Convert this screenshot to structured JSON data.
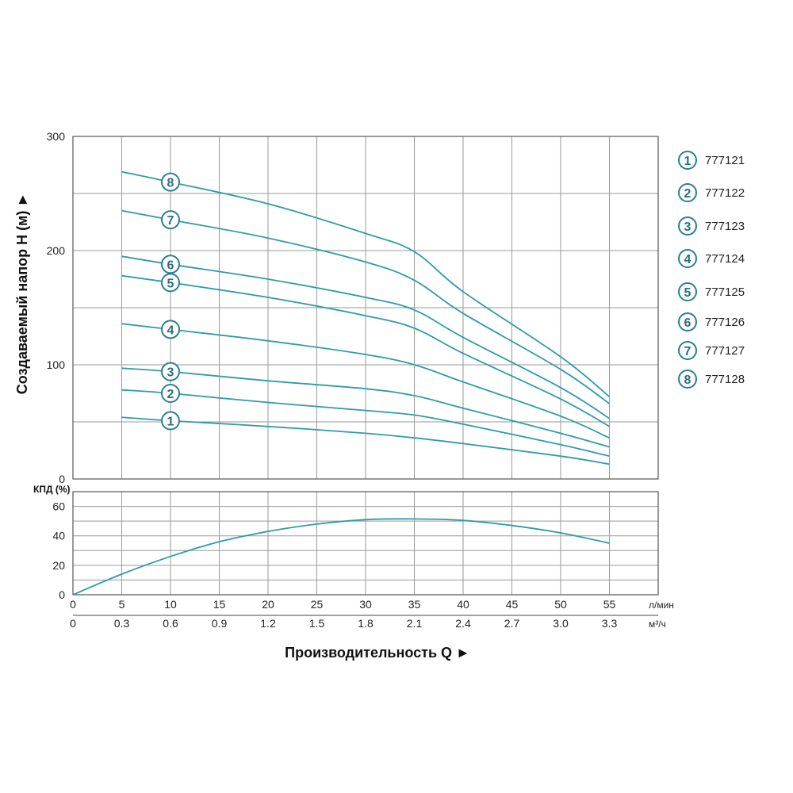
{
  "colors": {
    "curve": "#2f9bab",
    "grid": "#9a9a9a",
    "frame": "#555555",
    "marker_stroke": "#2a7f90",
    "marker_text": "#2a6f80"
  },
  "chart_data": [
    {
      "type": "line",
      "ylabel": "Создаваемый напор H (м) ►",
      "ylim": [
        0,
        300
      ],
      "yticks": [
        "300",
        "200",
        "100",
        "0"
      ],
      "x_units": "л/мин",
      "xlim": [
        0,
        60
      ],
      "series": [
        {
          "name": "777121",
          "marker": "1",
          "x": [
            5,
            10,
            20,
            30,
            35,
            40,
            50,
            55
          ],
          "values": [
            54,
            51,
            46,
            40,
            36,
            31,
            20,
            13
          ]
        },
        {
          "name": "777122",
          "marker": "2",
          "x": [
            5,
            10,
            20,
            30,
            35,
            40,
            50,
            55
          ],
          "values": [
            78,
            75,
            67,
            60,
            56,
            48,
            30,
            20
          ]
        },
        {
          "name": "777123",
          "marker": "3",
          "x": [
            5,
            10,
            20,
            30,
            35,
            40,
            50,
            55
          ],
          "values": [
            97,
            94,
            86,
            79,
            73,
            62,
            40,
            28
          ]
        },
        {
          "name": "777124",
          "marker": "4",
          "x": [
            5,
            10,
            20,
            30,
            35,
            40,
            50,
            55
          ],
          "values": [
            136,
            131,
            121,
            109,
            100,
            85,
            55,
            36
          ]
        },
        {
          "name": "777125",
          "marker": "5",
          "x": [
            5,
            10,
            20,
            30,
            35,
            40,
            50,
            55
          ],
          "values": [
            178,
            172,
            159,
            143,
            132,
            110,
            70,
            46
          ]
        },
        {
          "name": "777126",
          "marker": "6",
          "x": [
            5,
            10,
            20,
            30,
            35,
            40,
            50,
            55
          ],
          "values": [
            195,
            188,
            175,
            159,
            148,
            124,
            80,
            53
          ]
        },
        {
          "name": "777127",
          "marker": "7",
          "x": [
            5,
            10,
            20,
            30,
            35,
            40,
            50,
            55
          ],
          "values": [
            235,
            227,
            211,
            190,
            174,
            145,
            96,
            66
          ]
        },
        {
          "name": "777128",
          "marker": "8",
          "x": [
            5,
            10,
            20,
            30,
            35,
            40,
            50,
            55
          ],
          "values": [
            269,
            260,
            241,
            215,
            199,
            164,
            107,
            72
          ]
        }
      ]
    },
    {
      "type": "line",
      "ylabel": "КПД (%)",
      "ylim": [
        0,
        70
      ],
      "yticks": [
        "60",
        "40",
        "20",
        "0"
      ],
      "series": [
        {
          "x": [
            0,
            5,
            10,
            15,
            20,
            25,
            30,
            35,
            40,
            45,
            50,
            55
          ],
          "values": [
            0,
            14,
            26,
            36,
            43,
            48,
            51,
            51.5,
            50.5,
            47,
            42,
            35
          ]
        }
      ]
    }
  ],
  "x_axis": {
    "lmin_ticks": [
      "0",
      "5",
      "10",
      "15",
      "20",
      "25",
      "30",
      "35",
      "40",
      "45",
      "50",
      "55"
    ],
    "lmin_unit": "л/мин",
    "m3h_ticks": [
      "0",
      "0.3",
      "0.6",
      "0.9",
      "1.2",
      "1.5",
      "1.8",
      "2.1",
      "2.4",
      "2.7",
      "3.0",
      "3.3"
    ],
    "m3h_unit": "м³/ч",
    "title": "Производительность Q ►"
  },
  "legend": [
    {
      "marker": "1",
      "label": "777121"
    },
    {
      "marker": "2",
      "label": "777122"
    },
    {
      "marker": "3",
      "label": "777123"
    },
    {
      "marker": "4",
      "label": "777124"
    },
    {
      "marker": "5",
      "label": "777125"
    },
    {
      "marker": "6",
      "label": "777126"
    },
    {
      "marker": "7",
      "label": "777127"
    },
    {
      "marker": "8",
      "label": "777128"
    }
  ]
}
